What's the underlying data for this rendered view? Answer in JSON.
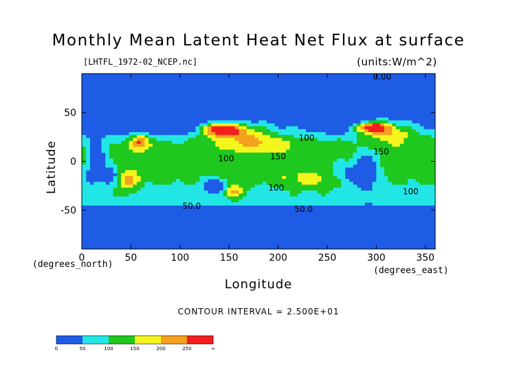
{
  "chart_data": {
    "type": "heatmap",
    "title": "Monthly Mean Latent Heat Net Flux at surface",
    "file_label": "[LHTFL_1972-02_NCEP.nc]",
    "units_label": "(units:W/m^2)",
    "xlabel": "Longitude",
    "xunit_label": "(degrees_east)",
    "ylabel": "Latitude",
    "yunit_label": "(degrees_north)",
    "xlim": [
      0,
      360
    ],
    "ylim": [
      -90,
      90
    ],
    "x_ticks": [
      0,
      50,
      100,
      150,
      200,
      250,
      300,
      350
    ],
    "y_ticks": [
      -50,
      0,
      50
    ],
    "contour_interval_text": "CONTOUR INTERVAL = 2.500E+01",
    "contour_labels": [
      {
        "text": "0.00",
        "lon": 306,
        "lat": 87
      },
      {
        "text": "100",
        "lon": 229,
        "lat": 24
      },
      {
        "text": "100",
        "lon": 147,
        "lat": 3
      },
      {
        "text": "150",
        "lon": 200,
        "lat": 5
      },
      {
        "text": "150",
        "lon": 305,
        "lat": 10
      },
      {
        "text": "100",
        "lon": 198,
        "lat": -27
      },
      {
        "text": "100",
        "lon": 335,
        "lat": -31
      },
      {
        "text": "50.0",
        "lon": 112,
        "lat": -46
      },
      {
        "text": "50.0",
        "lon": 226,
        "lat": -49
      }
    ],
    "colorbar": {
      "levels": [
        "0",
        "50",
        "100",
        "150",
        "200",
        "250",
        "∞"
      ],
      "colors": [
        "#1e5ce6",
        "#1e5ce6",
        "#22e6e6",
        "#1ec81e",
        "#f5f51e",
        "#f5a01e",
        "#f51e1e"
      ],
      "bins": [
        {
          "from": 0,
          "to": 25,
          "color": "#1e5ce6"
        },
        {
          "from": 25,
          "to": 50,
          "color": "#1e5ce6"
        },
        {
          "from": 50,
          "to": 75,
          "color": "#22e6e6"
        },
        {
          "from": 75,
          "to": 100,
          "color": "#22e6e6"
        },
        {
          "from": 100,
          "to": 125,
          "color": "#1ec81e"
        },
        {
          "from": 125,
          "to": 150,
          "color": "#1ec81e"
        },
        {
          "from": 150,
          "to": 175,
          "color": "#f5f51e"
        },
        {
          "from": 175,
          "to": 200,
          "color": "#f5f51e"
        },
        {
          "from": 200,
          "to": 225,
          "color": "#f5a01e"
        },
        {
          "from": 225,
          "to": 250,
          "color": "#f5a01e"
        },
        {
          "from": 250,
          "to": 275,
          "color": "#f51e1e"
        },
        {
          "from": 275,
          "to": null,
          "color": "#f51e1e"
        }
      ]
    }
  }
}
